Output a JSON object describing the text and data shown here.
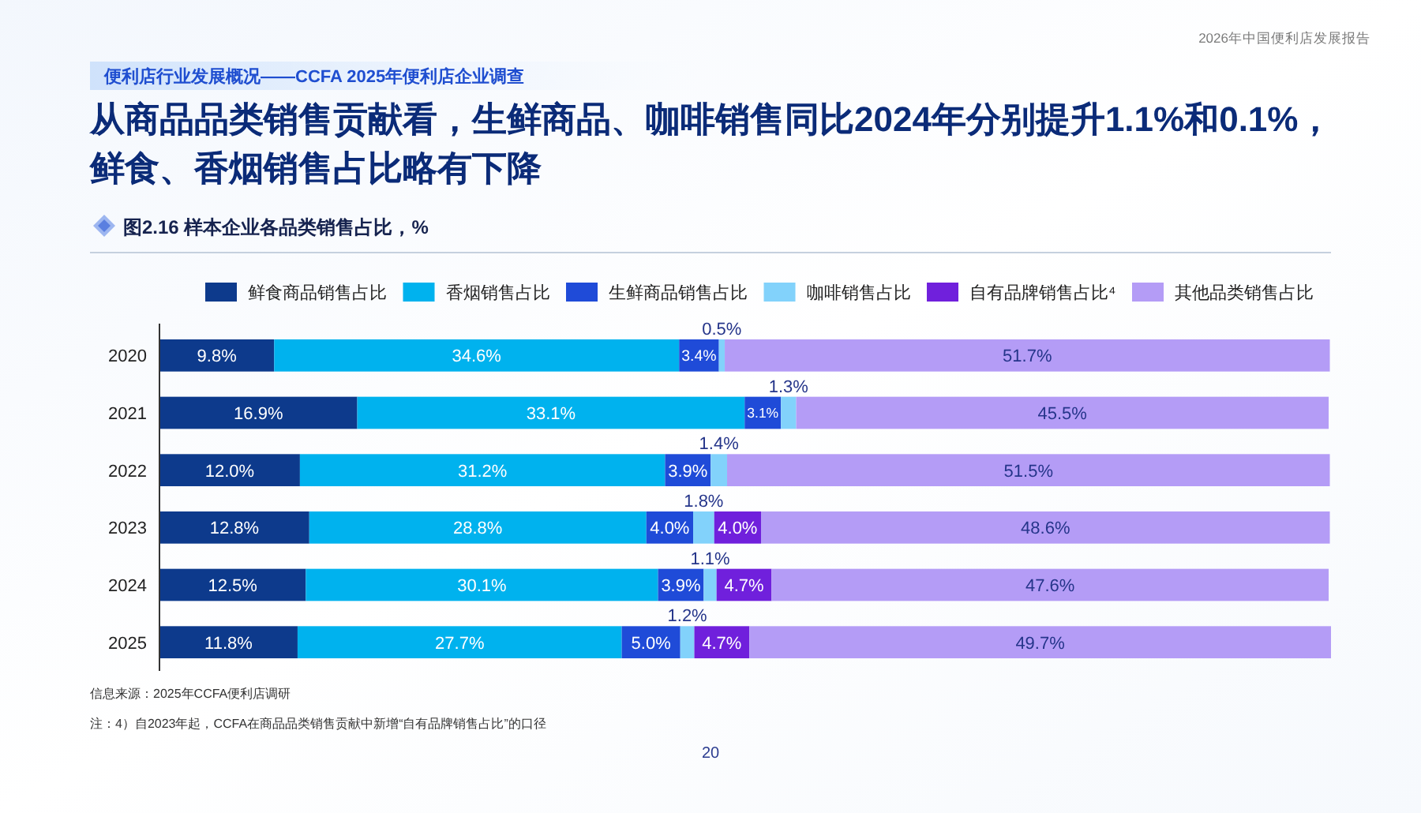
{
  "chart_data": {
    "type": "bar",
    "orientation": "horizontal",
    "stacked": true,
    "title": "从商品品类销售贡献看，生鲜商品、咖啡销售同比2024年分别提升1.1%和0.1%，鲜食、香烟销售占比略有下降",
    "subtitle": "图2.16 样本企业各品类销售占比，%",
    "categories": [
      "2020",
      "2021",
      "2022",
      "2023",
      "2024",
      "2025"
    ],
    "series": [
      {
        "name": "鲜食商品销售占比",
        "color": "#0d3a8c",
        "values": [
          9.8,
          16.9,
          12.0,
          12.8,
          12.5,
          11.8
        ],
        "value_labels": [
          "9.8%",
          "16.9%",
          "12.0%",
          "12.8%",
          "12.5%",
          "11.8%"
        ]
      },
      {
        "name": "香烟销售占比",
        "color": "#00b2ee",
        "values": [
          34.6,
          33.1,
          31.2,
          28.8,
          30.1,
          27.7
        ],
        "value_labels": [
          "34.6%",
          "33.1%",
          "31.2%",
          "28.8%",
          "30.1%",
          "27.7%"
        ]
      },
      {
        "name": "生鲜商品销售占比",
        "color": "#1f4bd8",
        "values": [
          3.4,
          3.1,
          3.9,
          4.0,
          3.9,
          5.0
        ],
        "value_labels": [
          "3.4%",
          "3.1%",
          "3.9%",
          "4.0%",
          "3.9%",
          "5.0%"
        ]
      },
      {
        "name": "咖啡销售占比",
        "color": "#82d2fb",
        "values": [
          0.5,
          1.3,
          1.4,
          1.8,
          1.1,
          1.2
        ],
        "value_labels": [
          "0.5%",
          "1.3%",
          "1.4%",
          "1.8%",
          "1.1%",
          "1.2%"
        ]
      },
      {
        "name": "自有品牌销售占比⁴",
        "color": "#7020dc",
        "values": [
          null,
          null,
          null,
          4.0,
          4.7,
          4.7
        ],
        "value_labels": [
          null,
          null,
          null,
          "4.0%",
          "4.7%",
          "4.7%"
        ]
      },
      {
        "name": "其他品类销售占比",
        "color": "#b49cf6",
        "values": [
          51.7,
          45.5,
          51.5,
          48.6,
          47.6,
          49.7
        ],
        "value_labels": [
          "51.7%",
          "45.5%",
          "51.5%",
          "48.6%",
          "47.6%",
          "49.7%"
        ]
      }
    ],
    "legend": "top",
    "tick_labels": "y",
    "annotations": [
      "2026年中国便利店发展报告",
      "便利店行业发展概况——CCFA 2025年便利店企业调查",
      "信息来源：2025年CCFA便利店调研",
      "注：4）自2023年起，CCFA在商品品类销售贡献中新增“自有品牌销售占比”的口径",
      "20"
    ]
  }
}
